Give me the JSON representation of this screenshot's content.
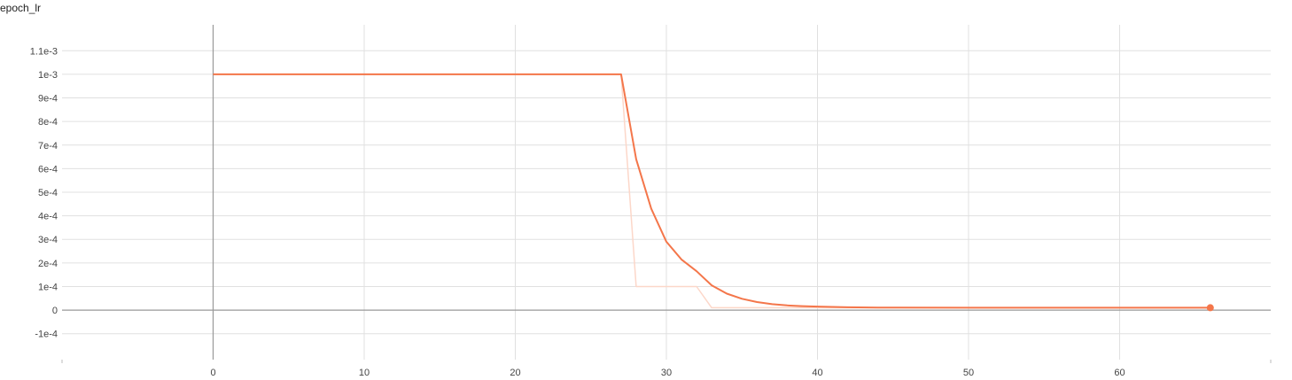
{
  "chart_data": {
    "type": "line",
    "title": "epoch_lr",
    "xlabel": "",
    "ylabel": "",
    "xlim": [
      -10,
      70
    ],
    "ylim": [
      -0.00021,
      0.00121
    ],
    "x_ticks": [
      0,
      10,
      20,
      30,
      40,
      50,
      60
    ],
    "x_tick_labels": [
      "0",
      "10",
      "20",
      "30",
      "40",
      "50",
      "60"
    ],
    "y_ticks": [
      -0.0001,
      0,
      0.0001,
      0.0002,
      0.0003,
      0.0004,
      0.0005,
      0.0006,
      0.0007,
      0.0008,
      0.0009,
      0.001,
      0.0011
    ],
    "y_tick_labels": [
      "-1e-4",
      "0",
      "1e-4",
      "2e-4",
      "3e-4",
      "4e-4",
      "5e-4",
      "6e-4",
      "7e-4",
      "8e-4",
      "9e-4",
      "1e-3",
      "1.1e-3"
    ],
    "grid": true,
    "series": [
      {
        "role": "raw",
        "color": "#fcd7c9",
        "x": [
          0,
          27,
          28,
          32,
          33,
          66
        ],
        "y": [
          0.001,
          0.001,
          0.0001,
          0.0001,
          1e-05,
          1e-05
        ]
      },
      {
        "role": "smoothed",
        "color": "#f4764a",
        "x": [
          0,
          27,
          28,
          29,
          30,
          31,
          32,
          33,
          34,
          35,
          36,
          37,
          38,
          39,
          40,
          42,
          44,
          50,
          60,
          66
        ],
        "y": [
          0.001,
          0.001,
          0.00064,
          0.00043,
          0.00029,
          0.000215,
          0.000165,
          0.000105,
          7e-05,
          4.8e-05,
          3.4e-05,
          2.5e-05,
          2e-05,
          1.7e-05,
          1.5e-05,
          1.2e-05,
          1.1e-05,
          1e-05,
          1e-05,
          1e-05
        ]
      }
    ]
  }
}
